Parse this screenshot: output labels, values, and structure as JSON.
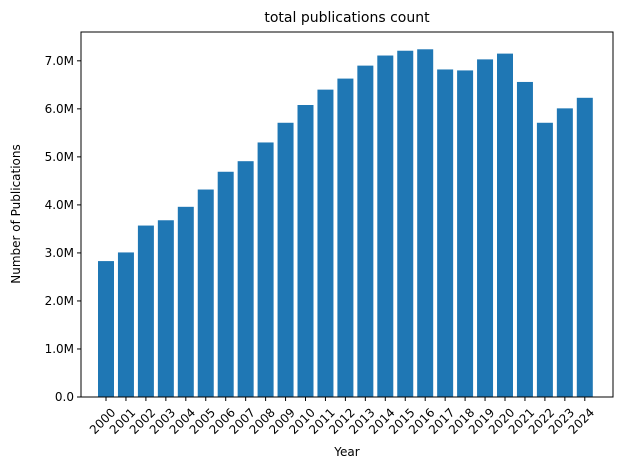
{
  "chart_data": {
    "type": "bar",
    "title": "total publications count",
    "xlabel": "Year",
    "ylabel": "Number of Publications",
    "categories": [
      "2000",
      "2001",
      "2002",
      "2003",
      "2004",
      "2005",
      "2006",
      "2007",
      "2008",
      "2009",
      "2010",
      "2011",
      "2012",
      "2013",
      "2014",
      "2015",
      "2016",
      "2017",
      "2018",
      "2019",
      "2020",
      "2021",
      "2022",
      "2023",
      "2024"
    ],
    "values": [
      2830000,
      3010000,
      3570000,
      3680000,
      3960000,
      4320000,
      4690000,
      4910000,
      5300000,
      5710000,
      6080000,
      6400000,
      6630000,
      6900000,
      7110000,
      7210000,
      7240000,
      6820000,
      6800000,
      7030000,
      7150000,
      6560000,
      5710000,
      6010000,
      6230000
    ],
    "ylim": [
      0,
      7600000
    ],
    "yticks": [
      0,
      1000000,
      2000000,
      3000000,
      4000000,
      5000000,
      6000000,
      7000000
    ],
    "ytick_labels": [
      "0.0",
      "1.0M",
      "2.0M",
      "3.0M",
      "4.0M",
      "5.0M",
      "6.0M",
      "7.0M"
    ],
    "bar_color": "#1f77b4",
    "grid": false,
    "legend": "none"
  }
}
